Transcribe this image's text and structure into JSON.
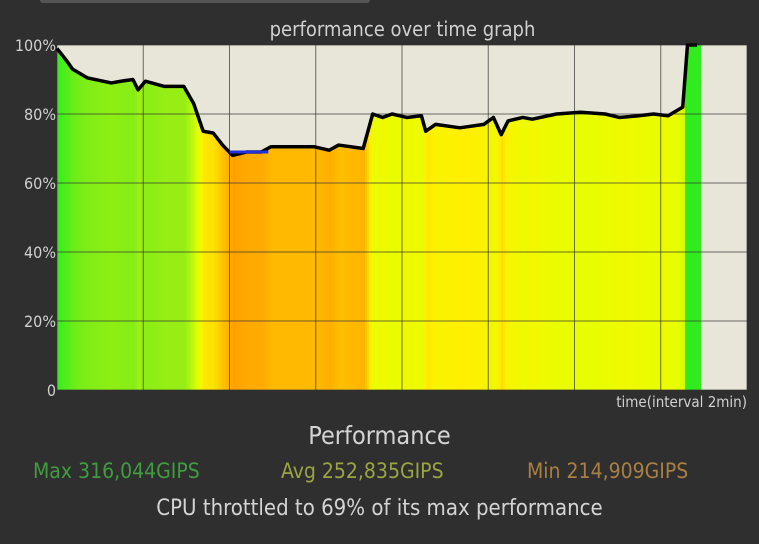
{
  "title": "performance over time graph",
  "x_unit_label": "time(interval 2min)",
  "summary": {
    "heading": "Performance",
    "max": "Max 316,044GIPS",
    "avg": "Avg 252,835GIPS",
    "min": "Min 214,909GIPS",
    "throttle_note": "CPU throttled to 69% of its max performance"
  },
  "colors": {
    "max": "#3f9d3f",
    "avg": "#9ba443",
    "min": "#a97f43",
    "line": "#000000",
    "min_marker": "#2233dd",
    "plot_bg": "#e8e6d8"
  },
  "chart_data": {
    "type": "area",
    "title": "performance over time graph",
    "xlabel": "time(interval 2min)",
    "ylabel": "",
    "ylim": [
      0,
      100
    ],
    "xlim": [
      0,
      16
    ],
    "y_ticks": [
      "0",
      "20%",
      "40%",
      "60%",
      "80%",
      "100%"
    ],
    "grid": true,
    "x": [
      0,
      0.25,
      0.36,
      0.7,
      1.26,
      1.48,
      1.76,
      1.88,
      2.05,
      2.49,
      2.94,
      3.17,
      3.39,
      3.62,
      3.84,
      4.07,
      4.4,
      4.74,
      4.96,
      5.41,
      5.97,
      6.31,
      6.53,
      7.1,
      7.32,
      7.55,
      7.77,
      8.11,
      8.45,
      8.55,
      8.78,
      9.34,
      9.9,
      10.12,
      10.3,
      10.46,
      10.8,
      11.02,
      11.58,
      12.14,
      12.71,
      13.04,
      13.49,
      13.83,
      14.17,
      14.51,
      14.62,
      14.84
    ],
    "values": [
      99,
      95,
      93,
      90.5,
      89,
      89.5,
      90,
      87,
      89.5,
      88,
      88,
      83,
      75,
      74.5,
      71,
      68,
      69,
      69,
      70.5,
      70.5,
      70.5,
      69.5,
      71,
      70,
      80,
      79,
      80,
      79,
      79.5,
      75,
      77,
      76,
      77,
      79,
      74,
      78,
      79,
      78.5,
      80,
      80.5,
      80,
      79,
      79.5,
      80,
      79.5,
      82,
      100,
      100
    ],
    "min_marker": {
      "x": [
        4.0,
        4.9
      ],
      "value": 69
    }
  }
}
